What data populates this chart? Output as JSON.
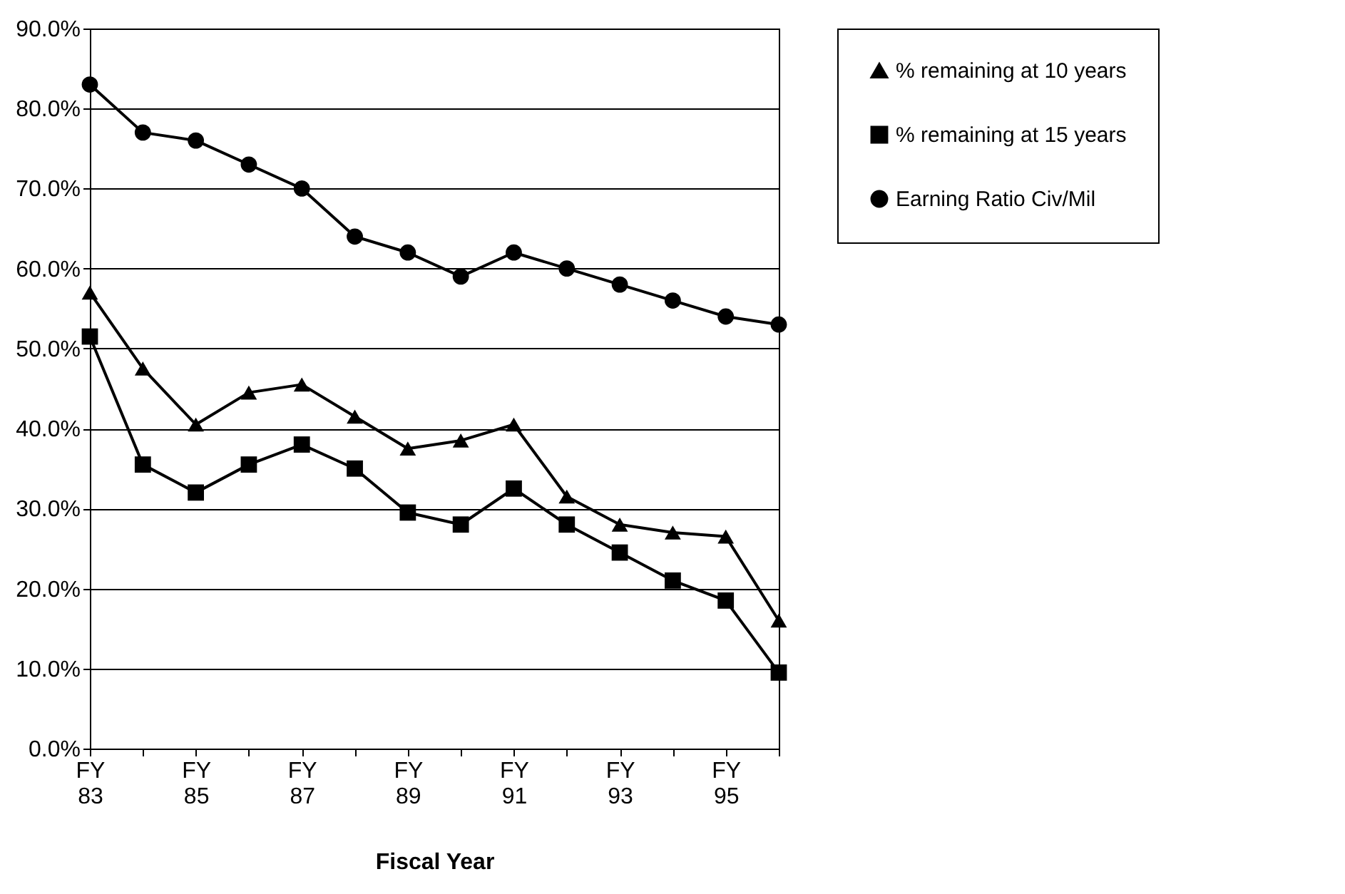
{
  "chart_data": {
    "type": "line",
    "xlabel": "Fiscal Year",
    "categories": [
      "FY 83",
      null,
      "FY 85",
      null,
      "FY 87",
      null,
      "FY 89",
      null,
      "FY 91",
      null,
      "FY 93",
      null,
      "FY 95",
      null
    ],
    "series": [
      {
        "name": "% remaining at 10 years",
        "color": "#000000",
        "marker": "triangle",
        "values": [
          57,
          47.5,
          40.5,
          44.5,
          45.5,
          41.5,
          37.5,
          38.5,
          40.5,
          31.5,
          28,
          27,
          26.5,
          16
        ]
      },
      {
        "name": "% remaining at 15 years",
        "color": "#000000",
        "marker": "square",
        "values": [
          51.5,
          35.5,
          32,
          35.5,
          38,
          35,
          29.5,
          28,
          32.5,
          28,
          24.5,
          21,
          18.5,
          9.5
        ]
      },
      {
        "name": "Earning Ratio Civ/Mil",
        "color": "#000000",
        "marker": "circle",
        "values": [
          83,
          77,
          76,
          73,
          70,
          64,
          62,
          59,
          62,
          60,
          58,
          56,
          54,
          53
        ]
      }
    ],
    "ylim": [
      0,
      90
    ],
    "yticks": [
      {
        "value": 0,
        "label": "0.0%"
      },
      {
        "value": 10,
        "label": "10.0%"
      },
      {
        "value": 20,
        "label": "20.0%"
      },
      {
        "value": 30,
        "label": "30.0%"
      },
      {
        "value": 40,
        "label": "40.0%"
      },
      {
        "value": 50,
        "label": "50.0%"
      },
      {
        "value": 60,
        "label": "60.0%"
      },
      {
        "value": 70,
        "label": "70.0%"
      },
      {
        "value": 80,
        "label": "80.0%"
      },
      {
        "value": 90,
        "label": "90.0%"
      }
    ],
    "grid": "y",
    "legend": "right"
  }
}
